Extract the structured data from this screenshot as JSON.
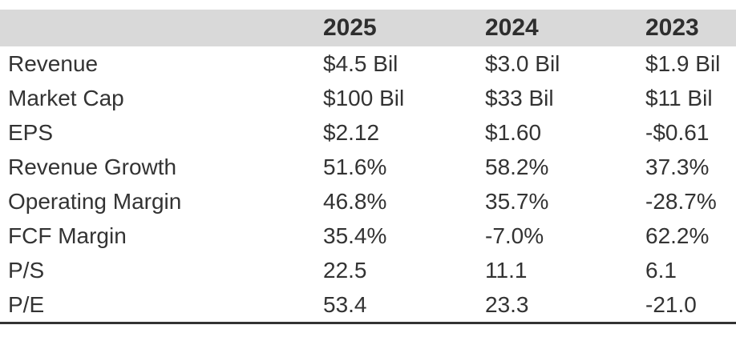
{
  "chart_data": {
    "type": "table",
    "title": "",
    "columns": [
      "",
      "2025",
      "2024",
      "2023"
    ],
    "rows": [
      {
        "label": "Revenue",
        "values": [
          "$4.5 Bil",
          "$3.0 Bil",
          "$1.9 Bil"
        ]
      },
      {
        "label": "Market Cap",
        "values": [
          "$100 Bil",
          "$33 Bil",
          "$11 Bil"
        ]
      },
      {
        "label": "EPS",
        "values": [
          "$2.12",
          "$1.60",
          "-$0.61"
        ]
      },
      {
        "label": "Revenue Growth",
        "values": [
          "51.6%",
          "58.2%",
          "37.3%"
        ]
      },
      {
        "label": "Operating Margin",
        "values": [
          "46.8%",
          "35.7%",
          "-28.7%"
        ]
      },
      {
        "label": "FCF Margin",
        "values": [
          "35.4%",
          "-7.0%",
          "62.2%"
        ]
      },
      {
        "label": "P/S",
        "values": [
          "22.5",
          "11.1",
          "6.1"
        ]
      },
      {
        "label": "P/E",
        "values": [
          "53.4",
          "23.3",
          "-21.0"
        ]
      }
    ],
    "layout": {
      "header_background": "#d9d9d9",
      "text_color": "#333333",
      "bottom_border_color": "#333333",
      "row_dividers": false
    }
  }
}
